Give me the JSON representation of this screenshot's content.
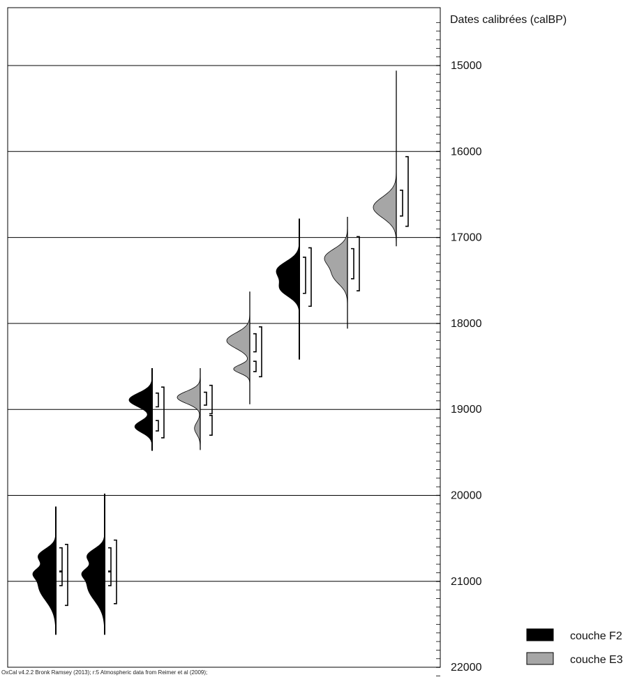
{
  "chart_data": {
    "type": "calibrated-date-distributions",
    "axis_title": "Dates calibrées (calBP)",
    "ylim": [
      14500,
      22100
    ],
    "y_inverted": true,
    "ticks": [
      "15000",
      "16000",
      "17000",
      "18000",
      "19000",
      "20000",
      "21000",
      "22000"
    ],
    "minor_tick_step": 100,
    "gridlines": [
      15000,
      16000,
      17000,
      18000,
      19000,
      20000,
      21000
    ],
    "legend_position": "bottom-right",
    "legend": [
      {
        "label": "couche F2",
        "color": "#000000"
      },
      {
        "label": "couche E3",
        "color": "#a6a6a6"
      }
    ],
    "samples": [
      {
        "layer": "couche F2",
        "color": "#000000",
        "range": [
          20130,
          21620
        ],
        "peaks": [
          {
            "c": 20700,
            "s": 80,
            "a": 0.9
          },
          {
            "c": 21050,
            "s": 170,
            "a": 1.0
          },
          {
            "c": 20900,
            "s": 60,
            "a": 0.6
          }
        ],
        "sigma1": [
          [
            20610,
            20880
          ],
          [
            20890,
            21050
          ]
        ],
        "sigma2": [
          [
            20570,
            21280
          ]
        ]
      },
      {
        "layer": "couche F2",
        "color": "#000000",
        "range": [
          19980,
          21620
        ],
        "peaks": [
          {
            "c": 20700,
            "s": 80,
            "a": 0.9
          },
          {
            "c": 21050,
            "s": 170,
            "a": 1.0
          },
          {
            "c": 20900,
            "s": 60,
            "a": 0.6
          }
        ],
        "sigma1": [
          [
            20610,
            20880
          ],
          [
            20890,
            21050
          ]
        ],
        "sigma2": [
          [
            20520,
            21260
          ]
        ]
      },
      {
        "layer": "couche F2",
        "color": "#000000",
        "range": [
          18520,
          19480
        ],
        "peaks": [
          {
            "c": 18890,
            "s": 80,
            "a": 1.0
          },
          {
            "c": 19200,
            "s": 70,
            "a": 0.75
          }
        ],
        "sigma1": [
          [
            18810,
            18970
          ],
          [
            19130,
            19250
          ]
        ],
        "sigma2": [
          [
            18740,
            19330
          ]
        ]
      },
      {
        "layer": "couche E3",
        "color": "#a6a6a6",
        "range": [
          18520,
          19470
        ],
        "peaks": [
          {
            "c": 18860,
            "s": 70,
            "a": 1.0
          },
          {
            "c": 19220,
            "s": 70,
            "a": 0.25
          }
        ],
        "sigma1": [
          [
            18800,
            18950
          ]
        ],
        "sigma2": [
          [
            18720,
            19050
          ],
          [
            19070,
            19300
          ]
        ]
      },
      {
        "layer": "couche E3",
        "color": "#a6a6a6",
        "range": [
          17630,
          18940
        ],
        "peaks": [
          {
            "c": 18200,
            "s": 90,
            "a": 1.0
          },
          {
            "c": 18530,
            "s": 50,
            "a": 0.7
          }
        ],
        "sigma1": [
          [
            18120,
            18330
          ],
          [
            18440,
            18560
          ]
        ],
        "sigma2": [
          [
            18040,
            18620
          ]
        ]
      },
      {
        "layer": "couche F2",
        "color": "#000000",
        "range": [
          16780,
          18420
        ],
        "peaks": [
          {
            "c": 17380,
            "s": 100,
            "a": 1.0
          },
          {
            "c": 17600,
            "s": 90,
            "a": 0.8
          }
        ],
        "sigma1": [
          [
            17230,
            17650
          ]
        ],
        "sigma2": [
          [
            17120,
            17800
          ]
        ]
      },
      {
        "layer": "couche E3",
        "color": "#a6a6a6",
        "range": [
          16760,
          18060
        ],
        "peaks": [
          {
            "c": 17230,
            "s": 100,
            "a": 1.0
          },
          {
            "c": 17450,
            "s": 100,
            "a": 0.6
          }
        ],
        "sigma1": [
          [
            17130,
            17480
          ]
        ],
        "sigma2": [
          [
            16990,
            17620
          ]
        ]
      },
      {
        "layer": "couche E3",
        "color": "#a6a6a6",
        "range": [
          15060,
          17100
        ],
        "peaks": [
          {
            "c": 16650,
            "s": 120,
            "a": 1.0
          }
        ],
        "sigma1": [
          [
            16450,
            16750
          ]
        ],
        "sigma2": [
          [
            16060,
            16870
          ]
        ]
      }
    ]
  },
  "credit": "OxCal v4.2.2 Bronk Ramsey (2013); r:5 Atmospheric data from Reimer et al (2009);"
}
